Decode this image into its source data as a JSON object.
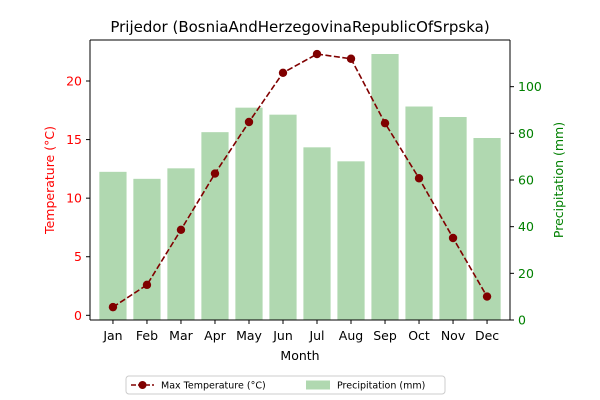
{
  "chart_data": {
    "type": "bar+line",
    "title": "Prijedor (BosniaAndHerzegovinaRepublicOfSrpska)",
    "xlabel": "Month",
    "categories": [
      "Jan",
      "Feb",
      "Mar",
      "Apr",
      "May",
      "Jun",
      "Jul",
      "Aug",
      "Sep",
      "Oct",
      "Nov",
      "Dec"
    ],
    "y_left": {
      "label": "Temperature (°C)",
      "lim": [
        -0.4,
        23.5
      ],
      "ticks": [
        0,
        5,
        10,
        15,
        20
      ],
      "color": "#ff0000"
    },
    "y_right": {
      "label": "Precipitation (mm)",
      "lim": [
        0,
        120
      ],
      "ticks": [
        0,
        20,
        40,
        60,
        80,
        100
      ],
      "color": "#008000"
    },
    "series": [
      {
        "name": "Max Temperature (°C)",
        "kind": "line",
        "axis": "left",
        "color": "#800000",
        "values": [
          0.7,
          2.6,
          7.3,
          12.1,
          16.5,
          20.7,
          22.3,
          21.9,
          16.4,
          11.7,
          6.6,
          1.6
        ]
      },
      {
        "name": "Precipitation (mm)",
        "kind": "bar",
        "axis": "right",
        "color": "#b0d8b0",
        "values": [
          63.5,
          60.5,
          65,
          80.5,
          91,
          88,
          74,
          68,
          114,
          91.5,
          87,
          78
        ]
      }
    ],
    "legend_position": "bottom-center",
    "grid": false
  }
}
